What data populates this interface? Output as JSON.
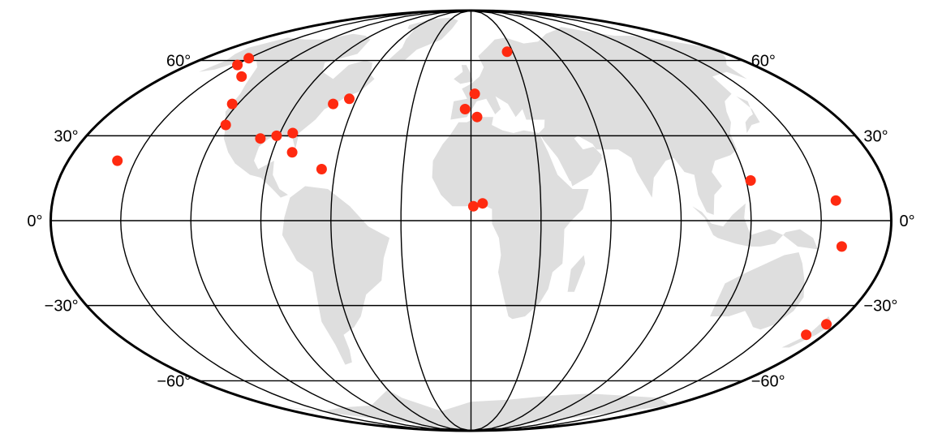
{
  "map": {
    "projection": "mollweide",
    "colors": {
      "background": "#ffffff",
      "land": "#dedede",
      "grid": "#000000",
      "point": "#ff2a10"
    },
    "latitude_labels": [
      {
        "lat": 60,
        "text": "60°"
      },
      {
        "lat": 30,
        "text": "30°"
      },
      {
        "lat": 0,
        "text": "0°"
      },
      {
        "lat": -30,
        "text": "−30°"
      },
      {
        "lat": -60,
        "text": "−60°"
      }
    ],
    "graticule": {
      "parallels": [
        -60,
        -30,
        0,
        30,
        60
      ],
      "meridian_step": 30
    },
    "points": [
      {
        "name": "hawaii",
        "lon": -158,
        "lat": 21
      },
      {
        "name": "alaska-1",
        "lon": -150,
        "lat": 61
      },
      {
        "name": "alaska-2",
        "lon": -149,
        "lat": 58
      },
      {
        "name": "canada-bc",
        "lon": -135,
        "lat": 53
      },
      {
        "name": "pacific-northwest",
        "lon": -123,
        "lat": 42
      },
      {
        "name": "california",
        "lon": -118,
        "lat": 34
      },
      {
        "name": "texas",
        "lon": -98,
        "lat": 29
      },
      {
        "name": "louisiana",
        "lon": -91,
        "lat": 30
      },
      {
        "name": "florida",
        "lon": -81,
        "lat": 24
      },
      {
        "name": "georgia",
        "lon": -84,
        "lat": 31
      },
      {
        "name": "puerto-rico",
        "lon": -66,
        "lat": 18
      },
      {
        "name": "massachusetts",
        "lon": -71,
        "lat": 42
      },
      {
        "name": "nova-scotia",
        "lon": -64,
        "lat": 44
      },
      {
        "name": "france",
        "lon": 2,
        "lat": 46
      },
      {
        "name": "spain",
        "lon": -3,
        "lat": 40
      },
      {
        "name": "spain-south",
        "lon": 3,
        "lat": 37
      },
      {
        "name": "finland",
        "lon": 26,
        "lat": 64
      },
      {
        "name": "ghana",
        "lon": 1,
        "lat": 5
      },
      {
        "name": "nigeria",
        "lon": 5,
        "lat": 6
      },
      {
        "name": "philippines",
        "lon": 122,
        "lat": 14
      },
      {
        "name": "pacific-island",
        "lon": 157,
        "lat": 7
      },
      {
        "name": "solomon-islands",
        "lon": 160,
        "lat": -9
      },
      {
        "name": "new-zealand-north",
        "lon": 175,
        "lat": -37
      },
      {
        "name": "new-zealand-south",
        "lon": 171,
        "lat": -41
      }
    ]
  }
}
